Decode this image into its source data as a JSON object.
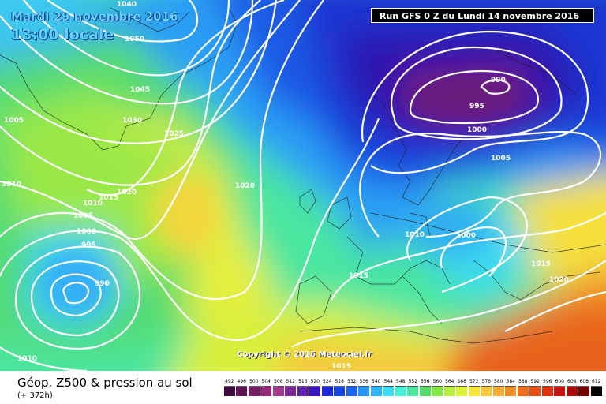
{
  "header": {
    "date_line": "Mardi 29 novembre 2016",
    "time_line": "13:00 locale",
    "run_label": "Run GFS 0 Z du Lundi 14 novembre 2016"
  },
  "copyright": "Copyright © 2016 Meteociel.fr",
  "footer": {
    "title": "Géop. Z500 & pression au sol",
    "lead": "(+ 372h)"
  },
  "legend": {
    "values": [
      "492",
      "496",
      "500",
      "504",
      "508",
      "512",
      "516",
      "520",
      "524",
      "528",
      "532",
      "536",
      "540",
      "544",
      "548",
      "552",
      "556",
      "560",
      "564",
      "568",
      "572",
      "576",
      "580",
      "584",
      "588",
      "592",
      "596",
      "600",
      "604",
      "608",
      "612"
    ],
    "colors": [
      "#3c0a3c",
      "#5a1450",
      "#781e64",
      "#962878",
      "#a03c8c",
      "#782896",
      "#5a1eaa",
      "#3c14be",
      "#1e28d2",
      "#1446e6",
      "#1e64f0",
      "#2896f5",
      "#32b4fa",
      "#3cdcf5",
      "#46f0d2",
      "#4be6a0",
      "#55dc6e",
      "#82e646",
      "#b4f03c",
      "#dcf03c",
      "#f5e63c",
      "#f5c83c",
      "#f5aa32",
      "#f08c28",
      "#eb6e1e",
      "#e65014",
      "#dc3214",
      "#c81414",
      "#aa0a0a",
      "#780000",
      "#000000"
    ]
  },
  "isobars": [
    "1050",
    "1040",
    "1045",
    "1030",
    "1005",
    "1025",
    "1020",
    "1015",
    "1010",
    "1005",
    "1000",
    "995",
    "990",
    "1010",
    "1020",
    "1005",
    "1000",
    "995",
    "990",
    "1000",
    "1010",
    "1015",
    "1015",
    "1020",
    "1010",
    "1015"
  ]
}
